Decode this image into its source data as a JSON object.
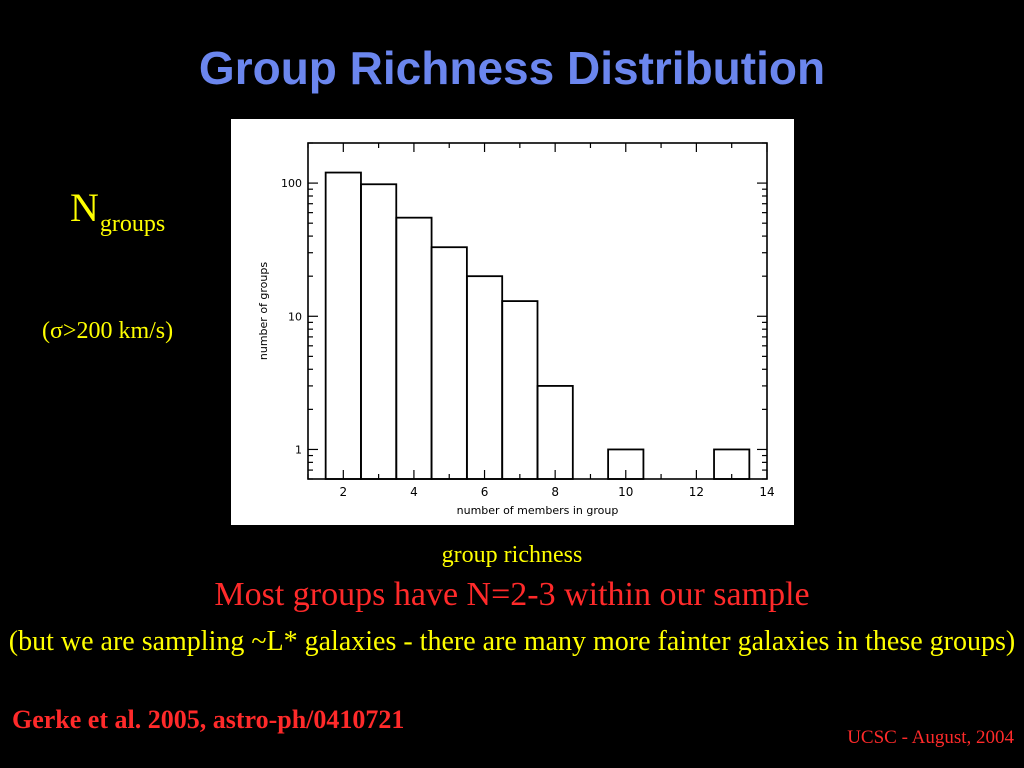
{
  "slide": {
    "title": "Group Richness Distribution",
    "y_label_symbol": "N",
    "y_label_subscript": "groups",
    "y_label_condition": "(σ>200 km/s)",
    "x_caption": "group richness",
    "headline": "Most groups have N=2-3 within our sample",
    "note": "(but we are sampling ~L* galaxies - there are many more fainter galaxies in these groups)",
    "citation": "Gerke et al. 2005, astro-ph/0410721",
    "footer": "UCSC - August, 2004"
  },
  "chart_data": {
    "type": "bar",
    "style": "step-histogram",
    "x": [
      2,
      3,
      4,
      5,
      6,
      7,
      8,
      9,
      10,
      11,
      12,
      13
    ],
    "values": [
      120,
      98,
      55,
      33,
      20,
      13,
      3,
      0,
      1,
      0,
      0,
      1
    ],
    "bin_width": 1,
    "xlabel": "number of members in group",
    "ylabel": "number of groups",
    "xlim": [
      1,
      14
    ],
    "ylim": [
      0.6,
      200
    ],
    "yscale": "log",
    "xticks": [
      2,
      4,
      6,
      8,
      10,
      12,
      14
    ],
    "yticks": [
      1,
      10,
      100
    ],
    "grid": false,
    "colors": {
      "line": "#000000",
      "background": "#ffffff"
    }
  }
}
